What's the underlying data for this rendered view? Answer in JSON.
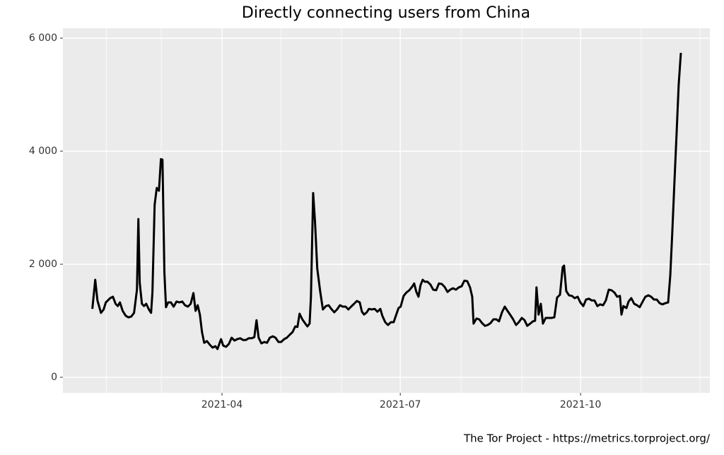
{
  "chart_data": {
    "type": "line",
    "title": "Directly connecting users from China",
    "caption": "The Tor Project - https://metrics.torproject.org/",
    "color": "#000000",
    "grid": true,
    "xlim": [
      8.8,
      339
    ],
    "ylim": [
      -275,
      6175
    ],
    "xticks": [
      {
        "value": 90,
        "label": "2021-04"
      },
      {
        "value": 181,
        "label": "2021-07"
      },
      {
        "value": 273,
        "label": "2021-10"
      }
    ],
    "xminorticks": [
      31,
      59,
      120,
      151,
      212,
      243,
      304,
      334
    ],
    "yticks": [
      0,
      {
        "value": 2000,
        "label": "2 000"
      },
      {
        "value": 4000,
        "label": "4 000"
      },
      {
        "value": 6000,
        "label": "6 000"
      }
    ],
    "x": [
      23.8,
      25.3,
      26.4,
      28.2,
      29.6,
      30.7,
      32.9,
      34.3,
      35.7,
      36.8,
      37.9,
      39.3,
      40.8,
      42.2,
      43.7,
      45.1,
      46.6,
      47.3,
      48.0,
      49.1,
      50.2,
      51.3,
      52.7,
      53.8,
      54.5,
      55.6,
      56.7,
      57.8,
      58.8,
      59.6,
      60.6,
      61.4,
      62.5,
      63.9,
      65.3,
      66.8,
      68.2,
      69.7,
      71.1,
      72.6,
      74.0,
      75.4,
      76.5,
      77.6,
      78.7,
      79.8,
      80.9,
      82.3,
      83.8,
      85.2,
      86.6,
      87.7,
      89.5,
      90.6,
      92.1,
      93.5,
      94.9,
      96.4,
      97.8,
      99.3,
      100.7,
      102.2,
      103.6,
      105.1,
      106.5,
      107.6,
      108.7,
      110.1,
      111.6,
      113.0,
      114.4,
      115.9,
      117.3,
      118.8,
      120.2,
      121.7,
      123.1,
      124.5,
      126.0,
      127.4,
      128.5,
      129.6,
      131.0,
      132.5,
      133.6,
      134.7,
      135.4,
      136.5,
      137.5,
      138.6,
      140.1,
      141.5,
      143.0,
      144.4,
      145.8,
      147.3,
      148.7,
      150.2,
      151.6,
      153.1,
      154.5,
      155.9,
      157.4,
      158.8,
      160.3,
      161.4,
      162.5,
      163.9,
      165.0,
      166.4,
      167.9,
      169.3,
      170.8,
      171.8,
      173.3,
      174.7,
      176.2,
      177.6,
      179.1,
      180.1,
      181.2,
      182.7,
      184.1,
      185.6,
      187.0,
      188.1,
      189.2,
      190.3,
      191.3,
      192.4,
      193.5,
      194.9,
      196.4,
      197.8,
      199.3,
      200.7,
      202.2,
      203.6,
      205.1,
      206.5,
      207.9,
      209.4,
      210.8,
      212.3,
      213.7,
      215.2,
      216.6,
      217.7,
      218.4,
      219.9,
      221.3,
      222.7,
      224.2,
      225.6,
      227.1,
      228.5,
      230.0,
      231.4,
      232.9,
      234.3,
      235.7,
      237.2,
      238.6,
      240.1,
      241.5,
      243.0,
      244.4,
      245.8,
      247.3,
      248.7,
      249.8,
      250.5,
      251.6,
      252.7,
      253.8,
      255.2,
      256.7,
      258.1,
      259.6,
      261.0,
      262.5,
      263.9,
      264.6,
      265.7,
      267.1,
      268.6,
      270.0,
      271.5,
      272.9,
      274.4,
      275.8,
      277.3,
      278.7,
      280.1,
      281.6,
      283.0,
      284.5,
      285.9,
      287.4,
      288.8,
      290.3,
      291.7,
      293.1,
      293.9,
      294.9,
      296.4,
      297.5,
      298.9,
      300.4,
      301.8,
      303.2,
      304.7,
      306.1,
      307.6,
      309.0,
      310.5,
      311.9,
      313.4,
      314.8,
      316.2,
      317.7,
      318.8,
      319.8,
      320.9,
      322.0,
      323.1,
      324.2
    ],
    "values": [
      1210,
      1725,
      1360,
      1140,
      1200,
      1325,
      1400,
      1425,
      1300,
      1260,
      1325,
      1175,
      1090,
      1060,
      1075,
      1140,
      1550,
      2800,
      1675,
      1300,
      1260,
      1300,
      1200,
      1140,
      1500,
      3050,
      3350,
      3300,
      3860,
      3850,
      1860,
      1240,
      1325,
      1325,
      1250,
      1340,
      1325,
      1340,
      1275,
      1250,
      1300,
      1490,
      1175,
      1275,
      1110,
      800,
      610,
      640,
      575,
      525,
      550,
      500,
      675,
      560,
      540,
      590,
      700,
      650,
      675,
      690,
      660,
      660,
      690,
      690,
      710,
      1010,
      700,
      600,
      625,
      610,
      700,
      725,
      700,
      625,
      625,
      675,
      700,
      750,
      800,
      900,
      890,
      1125,
      1025,
      950,
      900,
      950,
      1425,
      3260,
      2740,
      1925,
      1525,
      1200,
      1260,
      1275,
      1210,
      1150,
      1200,
      1275,
      1250,
      1250,
      1200,
      1250,
      1300,
      1350,
      1325,
      1160,
      1110,
      1150,
      1210,
      1200,
      1210,
      1160,
      1210,
      1090,
      975,
      925,
      975,
      975,
      1125,
      1225,
      1250,
      1440,
      1500,
      1540,
      1600,
      1660,
      1510,
      1425,
      1625,
      1725,
      1690,
      1690,
      1640,
      1550,
      1540,
      1660,
      1650,
      1600,
      1510,
      1550,
      1575,
      1550,
      1590,
      1610,
      1710,
      1700,
      1590,
      1425,
      950,
      1040,
      1025,
      960,
      910,
      925,
      960,
      1025,
      1025,
      990,
      1150,
      1250,
      1175,
      1100,
      1025,
      925,
      975,
      1050,
      1010,
      910,
      950,
      990,
      1000,
      1590,
      1110,
      1300,
      950,
      1050,
      1050,
      1050,
      1060,
      1410,
      1460,
      1950,
      1975,
      1525,
      1450,
      1440,
      1400,
      1425,
      1325,
      1260,
      1375,
      1390,
      1360,
      1360,
      1260,
      1290,
      1275,
      1360,
      1550,
      1540,
      1500,
      1425,
      1440,
      1110,
      1260,
      1225,
      1340,
      1400,
      1300,
      1275,
      1240,
      1340,
      1425,
      1450,
      1425,
      1375,
      1375,
      1310,
      1290,
      1310,
      1325,
      1800,
      2550,
      3425,
      4300,
      5175,
      5740
    ]
  }
}
